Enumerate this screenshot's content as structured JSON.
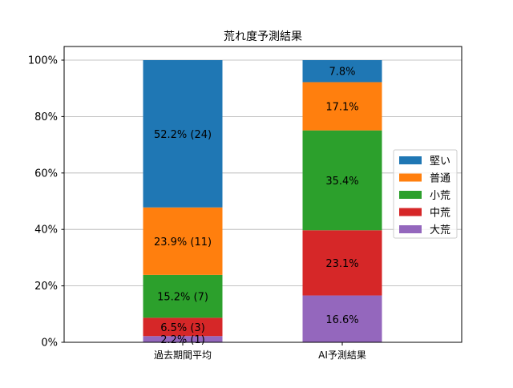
{
  "chart_data": {
    "type": "bar",
    "stacked": true,
    "title": "荒れ度予測結果",
    "xlabel": "",
    "ylabel": "",
    "ylim": [
      0,
      100
    ],
    "yticks": [
      "0%",
      "20%",
      "40%",
      "60%",
      "80%",
      "100%"
    ],
    "ytick_values": [
      0,
      20,
      40,
      60,
      80,
      100
    ],
    "grid": "y",
    "legend_position": "center-right",
    "categories": [
      "過去期間平均",
      "AI予測結果"
    ],
    "series": [
      {
        "name": "大荒",
        "color": "#9467bd",
        "values": [
          2.2,
          16.6
        ],
        "labels": [
          "2.2% (1)",
          "16.6%"
        ]
      },
      {
        "name": "中荒",
        "color": "#d62728",
        "values": [
          6.5,
          23.1
        ],
        "labels": [
          "6.5% (3)",
          "23.1%"
        ]
      },
      {
        "name": "小荒",
        "color": "#2ca02c",
        "values": [
          15.2,
          35.4
        ],
        "labels": [
          "15.2% (7)",
          "35.4%"
        ]
      },
      {
        "name": "普通",
        "color": "#ff7f0e",
        "values": [
          23.9,
          17.1
        ],
        "labels": [
          "23.9% (11)",
          "17.1%"
        ]
      },
      {
        "name": "堅い",
        "color": "#1f77b4",
        "values": [
          52.2,
          7.8
        ],
        "labels": [
          "52.2% (24)",
          "7.8%"
        ]
      }
    ],
    "legend_order": [
      "堅い",
      "普通",
      "小荒",
      "中荒",
      "大荒"
    ]
  }
}
